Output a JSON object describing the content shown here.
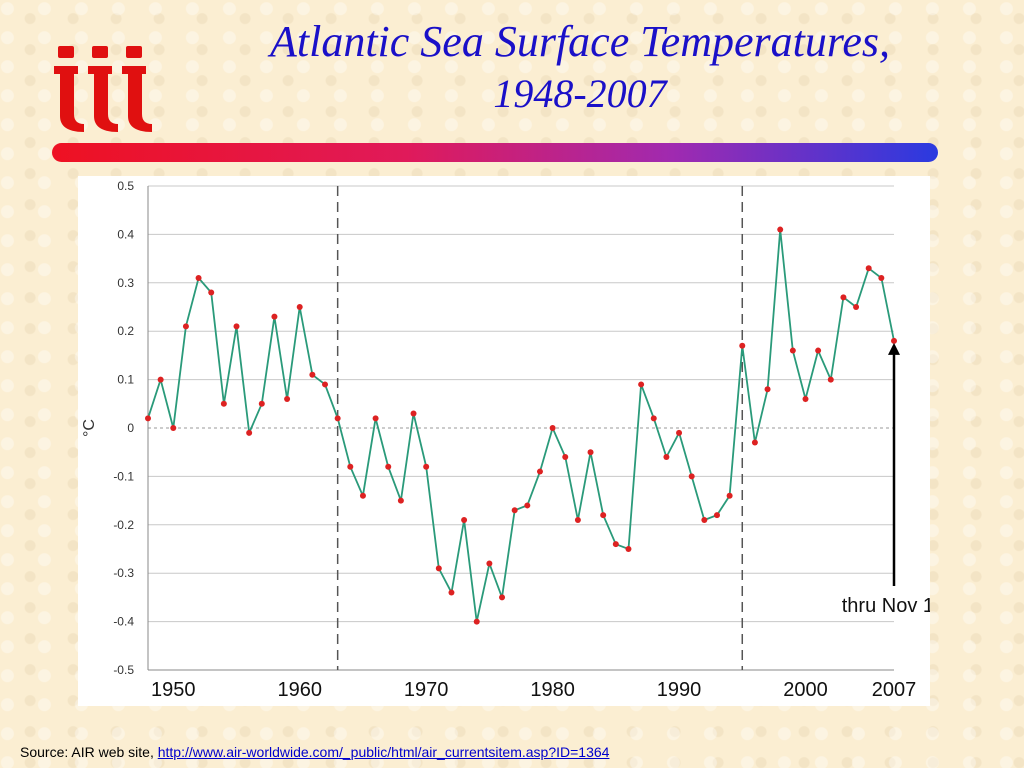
{
  "logo": {
    "text": "iii"
  },
  "slide": {
    "title_line1": "Atlantic Sea Surface Temperatures,",
    "title_line2": "1948-2007"
  },
  "colors": {
    "title": "#1a10c8",
    "bar_start": "#ee1122",
    "bar_end": "#2a3ae0",
    "line": "#2a9a7a",
    "marker": "#dd2222"
  },
  "source": {
    "label": "Source: AIR web site,",
    "link": "http://www.air-worldwide.com/_public/html/air_currentsitem.asp?ID=1364"
  },
  "chart_data": {
    "type": "line",
    "title": "",
    "xlabel": "",
    "ylabel": "°C",
    "ylim": [
      -0.5,
      0.5
    ],
    "xlim": [
      1948,
      2007
    ],
    "yticks": [
      "0.5",
      "0.4",
      "0.3",
      "0.2",
      "0.1",
      "0",
      "-0.1",
      "-0.2",
      "-0.3",
      "-0.4",
      "-0.5"
    ],
    "xticks": [
      "1950",
      "1960",
      "1970",
      "1980",
      "1990",
      "2000",
      "2007"
    ],
    "grid": true,
    "vlines": [
      1963,
      1995
    ],
    "annotation": {
      "text": "thru Nov 1",
      "x": 2007,
      "y": 0.18
    },
    "x": [
      1948,
      1949,
      1950,
      1951,
      1952,
      1953,
      1954,
      1955,
      1956,
      1957,
      1958,
      1959,
      1960,
      1961,
      1962,
      1963,
      1964,
      1965,
      1966,
      1967,
      1968,
      1969,
      1970,
      1971,
      1972,
      1973,
      1974,
      1975,
      1976,
      1977,
      1978,
      1979,
      1980,
      1981,
      1982,
      1983,
      1984,
      1985,
      1986,
      1987,
      1988,
      1989,
      1990,
      1991,
      1992,
      1993,
      1994,
      1995,
      1996,
      1997,
      1998,
      1999,
      2000,
      2001,
      2002,
      2003,
      2004,
      2005,
      2006,
      2007
    ],
    "y": [
      0.02,
      0.1,
      0.0,
      0.21,
      0.31,
      0.28,
      0.05,
      0.21,
      -0.01,
      0.05,
      0.23,
      0.06,
      0.25,
      0.11,
      0.09,
      0.02,
      -0.08,
      -0.14,
      0.02,
      -0.08,
      -0.15,
      0.03,
      -0.08,
      -0.29,
      -0.34,
      -0.19,
      -0.4,
      -0.28,
      -0.35,
      -0.17,
      -0.16,
      -0.09,
      0.0,
      -0.06,
      -0.19,
      -0.05,
      -0.18,
      -0.24,
      -0.25,
      0.09,
      0.02,
      -0.06,
      -0.01,
      -0.1,
      -0.19,
      -0.18,
      -0.14,
      0.17,
      -0.03,
      0.08,
      0.41,
      0.16,
      0.06,
      0.16,
      0.1,
      0.27,
      0.25,
      0.33,
      0.31,
      0.18
    ]
  }
}
